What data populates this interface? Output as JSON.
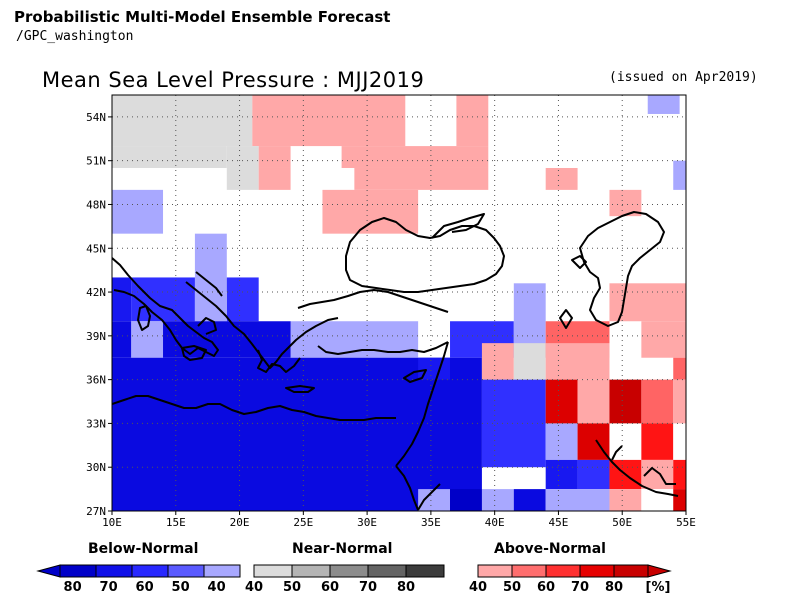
{
  "header": {
    "title": "Probabilistic Multi-Model Ensemble Forecast",
    "source": "/GPC_washington"
  },
  "map": {
    "title": "Mean Sea Level Pressure : MJJ2019",
    "issued": "(issued on Apr2019)",
    "lat_labels": [
      "54N",
      "51N",
      "48N",
      "45N",
      "42N",
      "39N",
      "36N",
      "33N",
      "30N",
      "27N"
    ],
    "lon_labels": [
      "10E",
      "15E",
      "20E",
      "25E",
      "30E",
      "35E",
      "40E",
      "45E",
      "50E",
      "55E"
    ],
    "extent": {
      "lon": [
        10,
        55
      ],
      "lat": [
        27,
        55.5
      ]
    },
    "grid": "dotted",
    "colors": {
      "below": {
        "40": "#a8a8ff",
        "50": "#3030ff",
        "60": "#1818f0",
        "70": "#0a0ae0",
        "80": "#0000c8"
      },
      "near": {
        "40": "#dcdcdc"
      },
      "above": {
        "40": "#ffa8a8",
        "50": "#ff6464",
        "60": "#ff1414",
        "70": "#dc0000",
        "80": "#c80000"
      }
    },
    "cells": [
      {
        "lon": [
          10,
          21
        ],
        "lat": [
          52,
          55.5
        ],
        "c": "N40"
      },
      {
        "lon": [
          21,
          33
        ],
        "lat": [
          52,
          55.5
        ],
        "c": "A40"
      },
      {
        "lon": [
          33,
          37
        ],
        "lat": [
          52,
          55.5
        ],
        "c": "W"
      },
      {
        "lon": [
          37,
          39.5
        ],
        "lat": [
          52,
          55.5
        ],
        "c": "A40"
      },
      {
        "lon": [
          52,
          54.5
        ],
        "lat": [
          54.2,
          55.5
        ],
        "c": "B40"
      },
      {
        "lon": [
          10,
          19
        ],
        "lat": [
          50.5,
          52
        ],
        "c": "N40"
      },
      {
        "lon": [
          19,
          21.5
        ],
        "lat": [
          50.5,
          52
        ],
        "c": "N40"
      },
      {
        "lon": [
          21.5,
          24
        ],
        "lat": [
          50.5,
          52
        ],
        "c": "A40"
      },
      {
        "lon": [
          28,
          39.5
        ],
        "lat": [
          50.5,
          52
        ],
        "c": "A40"
      },
      {
        "lon": [
          19,
          21.5
        ],
        "lat": [
          49,
          50.5
        ],
        "c": "N40"
      },
      {
        "lon": [
          21.5,
          24
        ],
        "lat": [
          49,
          50.5
        ],
        "c": "A40"
      },
      {
        "lon": [
          29,
          39.5
        ],
        "lat": [
          49,
          50.5
        ],
        "c": "A40"
      },
      {
        "lon": [
          44,
          46.5
        ],
        "lat": [
          49,
          50.5
        ],
        "c": "A40"
      },
      {
        "lon": [
          54,
          55
        ],
        "lat": [
          49,
          51
        ],
        "c": "B40"
      },
      {
        "lon": [
          10,
          14
        ],
        "lat": [
          46,
          49
        ],
        "c": "B40"
      },
      {
        "lon": [
          26.5,
          34
        ],
        "lat": [
          46,
          49
        ],
        "c": "A40"
      },
      {
        "lon": [
          49,
          51.5
        ],
        "lat": [
          47.2,
          49
        ],
        "c": "A40"
      },
      {
        "lon": [
          16.5,
          19
        ],
        "lat": [
          42,
          46
        ],
        "c": "B40"
      },
      {
        "lon": [
          11.5,
          16.5
        ],
        "lat": [
          40,
          43
        ],
        "c": "B50"
      },
      {
        "lon": [
          19,
          21.5
        ],
        "lat": [
          40,
          43
        ],
        "c": "B50"
      },
      {
        "lon": [
          10,
          11.5
        ],
        "lat": [
          40,
          43
        ],
        "c": "B60"
      },
      {
        "lon": [
          16.5,
          19
        ],
        "lat": [
          40,
          42
        ],
        "c": "B40"
      },
      {
        "lon": [
          11.5,
          14
        ],
        "lat": [
          37.5,
          40
        ],
        "c": "B40"
      },
      {
        "lon": [
          24,
          34
        ],
        "lat": [
          37.5,
          40
        ],
        "c": "B40"
      },
      {
        "lon": [
          36.5,
          41.5
        ],
        "lat": [
          37.5,
          40
        ],
        "c": "B50"
      },
      {
        "lon": [
          41.5,
          44
        ],
        "lat": [
          37.5,
          42.6
        ],
        "c": "B40"
      },
      {
        "lon": [
          44,
          49
        ],
        "lat": [
          37.5,
          40
        ],
        "c": "A50"
      },
      {
        "lon": [
          49,
          55
        ],
        "lat": [
          40,
          42.6
        ],
        "c": "A40"
      },
      {
        "lon": [
          51.5,
          55
        ],
        "lat": [
          37.5,
          40
        ],
        "c": "A40"
      },
      {
        "lon": [
          54,
          55
        ],
        "lat": [
          36,
          37.5
        ],
        "c": "A50"
      },
      {
        "lon": [
          10,
          39
        ],
        "lat": [
          27,
          37.5
        ],
        "c": "B70"
      },
      {
        "lon": [
          10,
          11.5
        ],
        "lat": [
          37.5,
          40
        ],
        "c": "B70"
      },
      {
        "lon": [
          14,
          24
        ],
        "lat": [
          37.5,
          40
        ],
        "c": "B70"
      },
      {
        "lon": [
          34,
          36.5
        ],
        "lat": [
          36,
          37.5
        ],
        "c": "B60"
      },
      {
        "lon": [
          39,
          41.5
        ],
        "lat": [
          36,
          38.5
        ],
        "c": "A40"
      },
      {
        "lon": [
          41.5,
          44
        ],
        "lat": [
          36,
          38.5
        ],
        "c": "N40"
      },
      {
        "lon": [
          44,
          49
        ],
        "lat": [
          36,
          38.5
        ],
        "c": "A40"
      },
      {
        "lon": [
          39,
          44
        ],
        "lat": [
          30,
          36
        ],
        "c": "B50"
      },
      {
        "lon": [
          44,
          46.5
        ],
        "lat": [
          33,
          36
        ],
        "c": "A70"
      },
      {
        "lon": [
          46.5,
          49
        ],
        "lat": [
          33,
          36
        ],
        "c": "A40"
      },
      {
        "lon": [
          49,
          51.5
        ],
        "lat": [
          33,
          36
        ],
        "c": "A80"
      },
      {
        "lon": [
          51.5,
          54
        ],
        "lat": [
          33,
          36
        ],
        "c": "A50"
      },
      {
        "lon": [
          54,
          55
        ],
        "lat": [
          33,
          36
        ],
        "c": "A40"
      },
      {
        "lon": [
          44,
          46.5
        ],
        "lat": [
          30.5,
          33
        ],
        "c": "B40"
      },
      {
        "lon": [
          46.5,
          49
        ],
        "lat": [
          30.5,
          33
        ],
        "c": "A70"
      },
      {
        "lon": [
          49,
          51.5
        ],
        "lat": [
          30.5,
          33
        ],
        "c": "W"
      },
      {
        "lon": [
          51.5,
          54
        ],
        "lat": [
          30.5,
          33
        ],
        "c": "A60"
      },
      {
        "lon": [
          54,
          55
        ],
        "lat": [
          30.5,
          33
        ],
        "c": "W"
      },
      {
        "lon": [
          44,
          46.5
        ],
        "lat": [
          28.5,
          30.5
        ],
        "c": "B60"
      },
      {
        "lon": [
          46.5,
          49
        ],
        "lat": [
          28.5,
          30.5
        ],
        "c": "B50"
      },
      {
        "lon": [
          49,
          51.5
        ],
        "lat": [
          28.5,
          30.5
        ],
        "c": "A60"
      },
      {
        "lon": [
          51.5,
          54
        ],
        "lat": [
          28.5,
          30.5
        ],
        "c": "A40"
      },
      {
        "lon": [
          54,
          55
        ],
        "lat": [
          28.5,
          30.5
        ],
        "c": "A60"
      },
      {
        "lon": [
          34,
          36.5
        ],
        "lat": [
          27,
          28.5
        ],
        "c": "B40"
      },
      {
        "lon": [
          36.5,
          39
        ],
        "lat": [
          27,
          28.5
        ],
        "c": "B80"
      },
      {
        "lon": [
          39,
          41.5
        ],
        "lat": [
          27,
          28.5
        ],
        "c": "B40"
      },
      {
        "lon": [
          41.5,
          44
        ],
        "lat": [
          27,
          28.5
        ],
        "c": "B70"
      },
      {
        "lon": [
          44,
          49
        ],
        "lat": [
          27,
          28.5
        ],
        "c": "B40"
      },
      {
        "lon": [
          49,
          51.5
        ],
        "lat": [
          27,
          28.5
        ],
        "c": "A40"
      },
      {
        "lon": [
          51.5,
          54
        ],
        "lat": [
          27,
          28.5
        ],
        "c": "W"
      },
      {
        "lon": [
          54,
          55
        ],
        "lat": [
          27,
          28.5
        ],
        "c": "A70"
      }
    ]
  },
  "legend": {
    "below": {
      "title": "Below-Normal",
      "labels": [
        "80",
        "70",
        "60",
        "50",
        "40"
      ],
      "colors": [
        "#0000c8",
        "#1010e8",
        "#2828ff",
        "#5a5aff",
        "#a8a8ff"
      ]
    },
    "near": {
      "title": "Near-Normal",
      "labels": [
        "40",
        "50",
        "60",
        "70",
        "80"
      ],
      "colors": [
        "#dcdcdc",
        "#b4b4b4",
        "#8c8c8c",
        "#646464",
        "#3c3c3c"
      ]
    },
    "above": {
      "title": "Above-Normal",
      "labels": [
        "40",
        "50",
        "60",
        "70",
        "80"
      ],
      "colors": [
        "#ffa8a8",
        "#ff6e6e",
        "#ff3030",
        "#e60000",
        "#c80000"
      ]
    },
    "unit": "[%]"
  }
}
